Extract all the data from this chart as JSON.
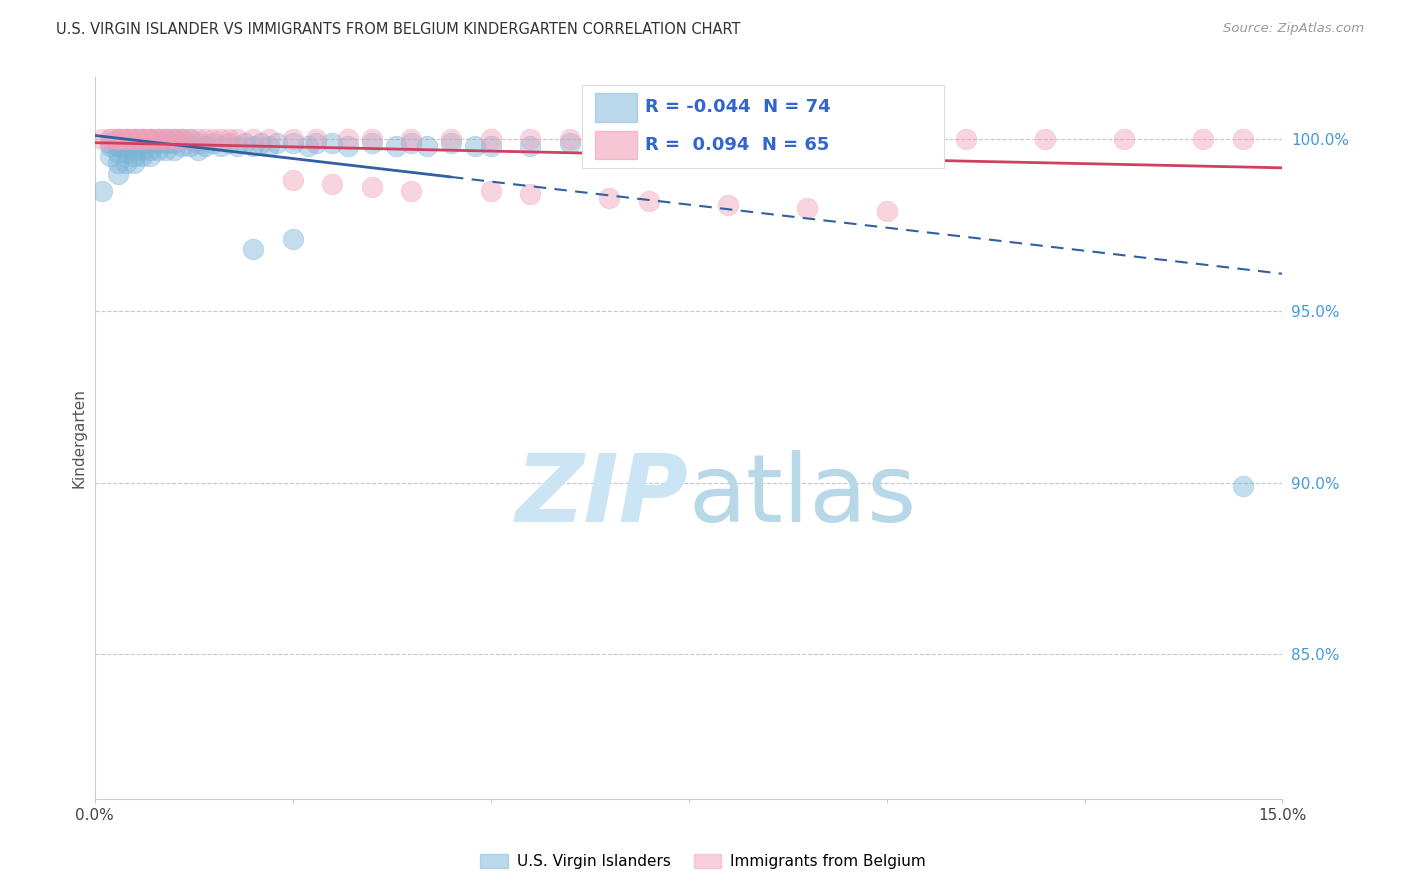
{
  "title": "U.S. VIRGIN ISLANDER VS IMMIGRANTS FROM BELGIUM KINDERGARTEN CORRELATION CHART",
  "source": "Source: ZipAtlas.com",
  "ylabel": "Kindergarten",
  "ylabel_right_ticks": [
    "100.0%",
    "95.0%",
    "90.0%",
    "85.0%"
  ],
  "ylabel_right_vals": [
    1.0,
    0.95,
    0.9,
    0.85
  ],
  "xmin": 0.0,
  "xmax": 0.15,
  "ymin": 0.808,
  "ymax": 1.018,
  "legend_blue_r": "-0.044",
  "legend_blue_n": "74",
  "legend_pink_r": "0.094",
  "legend_pink_n": "65",
  "legend_label_blue": "U.S. Virgin Islanders",
  "legend_label_pink": "Immigrants from Belgium",
  "blue_color": "#7ab4d8",
  "pink_color": "#f0a0b8",
  "blue_line_color": "#3060a0",
  "pink_line_color": "#d04060",
  "grid_color": "#c8c8c8",
  "watermark_color": "#cce5f5",
  "blue_scatter_x": [
    0.001,
    0.002,
    0.002,
    0.002,
    0.003,
    0.003,
    0.003,
    0.003,
    0.003,
    0.003,
    0.004,
    0.004,
    0.004,
    0.004,
    0.004,
    0.005,
    0.005,
    0.005,
    0.005,
    0.005,
    0.006,
    0.006,
    0.006,
    0.006,
    0.007,
    0.007,
    0.007,
    0.007,
    0.008,
    0.008,
    0.008,
    0.009,
    0.009,
    0.009,
    0.01,
    0.01,
    0.01,
    0.011,
    0.011,
    0.012,
    0.012,
    0.013,
    0.013,
    0.014,
    0.015,
    0.016,
    0.017,
    0.018,
    0.019,
    0.02,
    0.021,
    0.022,
    0.023,
    0.025,
    0.027,
    0.028,
    0.03,
    0.032,
    0.035,
    0.038,
    0.04,
    0.042,
    0.045,
    0.048,
    0.05,
    0.055,
    0.06,
    0.065,
    0.07,
    0.08,
    0.09,
    0.145,
    0.02,
    0.025
  ],
  "blue_scatter_y": [
    0.985,
    0.999,
    0.998,
    0.995,
    1.0,
    0.999,
    0.998,
    0.996,
    0.993,
    0.99,
    1.0,
    0.999,
    0.998,
    0.996,
    0.993,
    1.0,
    0.999,
    0.997,
    0.995,
    0.993,
    1.0,
    0.999,
    0.997,
    0.995,
    1.0,
    0.999,
    0.997,
    0.995,
    1.0,
    0.999,
    0.997,
    1.0,
    0.999,
    0.997,
    1.0,
    0.999,
    0.997,
    1.0,
    0.998,
    1.0,
    0.998,
    0.999,
    0.997,
    0.998,
    0.999,
    0.998,
    0.999,
    0.998,
    0.999,
    0.998,
    0.999,
    0.998,
    0.999,
    0.999,
    0.998,
    0.999,
    0.999,
    0.998,
    0.999,
    0.998,
    0.999,
    0.998,
    0.999,
    0.998,
    0.998,
    0.998,
    0.999,
    0.997,
    0.997,
    0.998,
    0.998,
    0.899,
    0.968,
    0.971
  ],
  "pink_scatter_x": [
    0.001,
    0.002,
    0.002,
    0.003,
    0.003,
    0.003,
    0.004,
    0.004,
    0.004,
    0.005,
    0.005,
    0.005,
    0.006,
    0.006,
    0.006,
    0.007,
    0.007,
    0.007,
    0.008,
    0.008,
    0.009,
    0.009,
    0.01,
    0.01,
    0.011,
    0.011,
    0.012,
    0.013,
    0.014,
    0.015,
    0.016,
    0.017,
    0.018,
    0.02,
    0.022,
    0.025,
    0.028,
    0.032,
    0.035,
    0.04,
    0.045,
    0.05,
    0.055,
    0.06,
    0.065,
    0.07,
    0.08,
    0.09,
    0.1,
    0.11,
    0.12,
    0.13,
    0.14,
    0.145,
    0.025,
    0.03,
    0.035,
    0.04,
    0.05,
    0.055,
    0.065,
    0.07,
    0.08,
    0.09,
    0.1
  ],
  "pink_scatter_y": [
    1.0,
    1.0,
    1.0,
    1.0,
    1.0,
    1.0,
    1.0,
    1.0,
    1.0,
    1.0,
    1.0,
    1.0,
    1.0,
    1.0,
    1.0,
    1.0,
    1.0,
    1.0,
    1.0,
    1.0,
    1.0,
    1.0,
    1.0,
    1.0,
    1.0,
    1.0,
    1.0,
    1.0,
    1.0,
    1.0,
    1.0,
    1.0,
    1.0,
    1.0,
    1.0,
    1.0,
    1.0,
    1.0,
    1.0,
    1.0,
    1.0,
    1.0,
    1.0,
    1.0,
    1.0,
    1.0,
    1.0,
    1.0,
    1.0,
    1.0,
    1.0,
    1.0,
    1.0,
    1.0,
    0.988,
    0.987,
    0.986,
    0.985,
    0.985,
    0.984,
    0.983,
    0.982,
    0.981,
    0.98,
    0.979
  ]
}
